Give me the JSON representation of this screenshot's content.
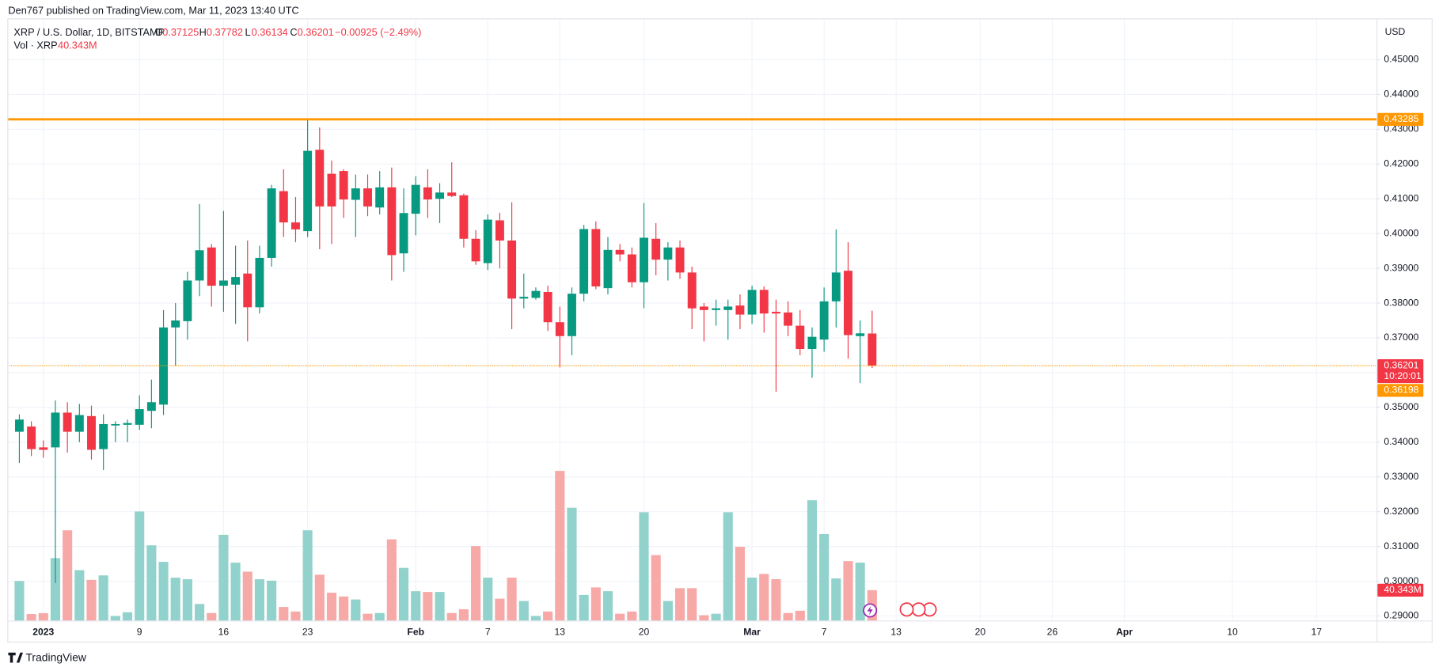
{
  "header": "Den767 published on TradingView.com, Mar 11, 2023 13:40 UTC",
  "brand": "TradingView",
  "chart_data": {
    "type": "candlestick",
    "title": "XRP / U.S. Dollar, 1D, BITSTAMP",
    "ohlc_labels": [
      "O",
      "H",
      "L",
      "C"
    ],
    "change_label": "−0.00925 (−2.49%)",
    "currency": "USD",
    "countdown": "10:20:01",
    "up_color": "#089981",
    "down_color": "#f23645",
    "volume_up_color": "#92d2cc",
    "volume_down_color": "#f7a9a7",
    "grid": true,
    "x": [
      "2022-12-30",
      "2022-12-31",
      "2023-01-01",
      "2023-01-02",
      "2023-01-03",
      "2023-01-04",
      "2023-01-05",
      "2023-01-06",
      "2023-01-07",
      "2023-01-08",
      "2023-01-09",
      "2023-01-10",
      "2023-01-11",
      "2023-01-12",
      "2023-01-13",
      "2023-01-14",
      "2023-01-15",
      "2023-01-16",
      "2023-01-17",
      "2023-01-18",
      "2023-01-19",
      "2023-01-20",
      "2023-01-21",
      "2023-01-22",
      "2023-01-23",
      "2023-01-24",
      "2023-01-25",
      "2023-01-26",
      "2023-01-27",
      "2023-01-28",
      "2023-01-29",
      "2023-01-30",
      "2023-01-31",
      "2023-02-01",
      "2023-02-02",
      "2023-02-03",
      "2023-02-04",
      "2023-02-05",
      "2023-02-06",
      "2023-02-07",
      "2023-02-08",
      "2023-02-09",
      "2023-02-10",
      "2023-02-11",
      "2023-02-12",
      "2023-02-13",
      "2023-02-14",
      "2023-02-15",
      "2023-02-16",
      "2023-02-17",
      "2023-02-18",
      "2023-02-19",
      "2023-02-20",
      "2023-02-21",
      "2023-02-22",
      "2023-02-23",
      "2023-02-24",
      "2023-02-25",
      "2023-02-26",
      "2023-02-27",
      "2023-02-28",
      "2023-03-01",
      "2023-03-02",
      "2023-03-03",
      "2023-03-04",
      "2023-03-05",
      "2023-03-06",
      "2023-03-07",
      "2023-03-08",
      "2023-03-09",
      "2023-03-10",
      "2023-03-11"
    ],
    "open": [
      0.343,
      0.3445,
      0.3385,
      0.3385,
      0.3485,
      0.343,
      0.3475,
      0.338,
      0.3448,
      0.345,
      0.345,
      0.349,
      0.3508,
      0.373,
      0.3748,
      0.3865,
      0.396,
      0.385,
      0.3853,
      0.3885,
      0.3788,
      0.393,
      0.4122,
      0.4032,
      0.4007,
      0.4241,
      0.4172,
      0.418,
      0.4097,
      0.413,
      0.4075,
      0.4133,
      0.3943,
      0.4057,
      0.4133,
      0.41,
      0.4118,
      0.411,
      0.3985,
      0.3915,
      0.4038,
      0.398,
      0.3813,
      0.3815,
      0.3832,
      0.3745,
      0.3705,
      0.3827,
      0.4013,
      0.3843,
      0.3953,
      0.394,
      0.386,
      0.3985,
      0.3925,
      0.396,
      0.3888,
      0.379,
      0.378,
      0.378,
      0.3793,
      0.3767,
      0.3838,
      0.3775,
      0.3773,
      0.3735,
      0.3668,
      0.3695,
      0.3805,
      0.3893,
      0.3705,
      0.37125
    ],
    "high": [
      0.348,
      0.346,
      0.3405,
      0.352,
      0.3515,
      0.351,
      0.3505,
      0.348,
      0.346,
      0.3465,
      0.3535,
      0.358,
      0.378,
      0.38,
      0.389,
      0.4085,
      0.397,
      0.4065,
      0.3965,
      0.398,
      0.3965,
      0.414,
      0.4185,
      0.4105,
      0.433,
      0.4305,
      0.421,
      0.4185,
      0.417,
      0.417,
      0.418,
      0.419,
      0.413,
      0.4165,
      0.4185,
      0.4145,
      0.4205,
      0.4115,
      0.401,
      0.4055,
      0.406,
      0.409,
      0.3885,
      0.3845,
      0.385,
      0.379,
      0.3845,
      0.4025,
      0.4035,
      0.399,
      0.397,
      0.396,
      0.4088,
      0.403,
      0.3975,
      0.398,
      0.3905,
      0.38,
      0.381,
      0.381,
      0.3825,
      0.385,
      0.3848,
      0.381,
      0.3805,
      0.378,
      0.373,
      0.3845,
      0.4012,
      0.3975,
      0.375,
      0.37782
    ],
    "low": [
      0.334,
      0.336,
      0.3355,
      0.2995,
      0.337,
      0.34,
      0.335,
      0.332,
      0.34,
      0.34,
      0.3435,
      0.344,
      0.3478,
      0.362,
      0.3695,
      0.382,
      0.379,
      0.3775,
      0.374,
      0.369,
      0.377,
      0.3905,
      0.399,
      0.3975,
      0.399,
      0.3955,
      0.397,
      0.4045,
      0.399,
      0.405,
      0.4055,
      0.3865,
      0.389,
      0.3995,
      0.4045,
      0.403,
      0.4105,
      0.396,
      0.391,
      0.3895,
      0.39,
      0.3725,
      0.3785,
      0.381,
      0.372,
      0.3615,
      0.365,
      0.3805,
      0.384,
      0.3825,
      0.392,
      0.3845,
      0.3785,
      0.388,
      0.3865,
      0.387,
      0.3725,
      0.369,
      0.3735,
      0.3695,
      0.3725,
      0.374,
      0.3715,
      0.3545,
      0.3705,
      0.365,
      0.3585,
      0.366,
      0.373,
      0.364,
      0.357,
      0.36134
    ],
    "close": [
      0.3465,
      0.338,
      0.3378,
      0.3485,
      0.343,
      0.3478,
      0.3378,
      0.3452,
      0.3452,
      0.3455,
      0.3495,
      0.3515,
      0.373,
      0.375,
      0.3865,
      0.3952,
      0.385,
      0.3865,
      0.3875,
      0.3788,
      0.393,
      0.413,
      0.4032,
      0.4012,
      0.4238,
      0.4078,
      0.4078,
      0.4098,
      0.413,
      0.4078,
      0.4133,
      0.3938,
      0.4059,
      0.414,
      0.4098,
      0.4118,
      0.4108,
      0.3985,
      0.392,
      0.404,
      0.398,
      0.3813,
      0.3818,
      0.3835,
      0.3745,
      0.3705,
      0.3827,
      0.4013,
      0.3848,
      0.3953,
      0.394,
      0.386,
      0.3988,
      0.3925,
      0.396,
      0.3888,
      0.3785,
      0.378,
      0.3785,
      0.379,
      0.3767,
      0.3838,
      0.377,
      0.377,
      0.3735,
      0.3668,
      0.3703,
      0.3805,
      0.3888,
      0.3708,
      0.3713,
      0.36201
    ],
    "volume": {
      "name": "Vol · XRP",
      "value_label": "40.343M",
      "values": [
        52.6,
        8.6,
        9.8,
        83,
        120,
        67,
        54,
        60,
        6,
        11,
        145,
        100,
        78,
        57,
        55,
        22,
        10,
        114,
        77,
        65,
        55,
        53,
        18,
        12,
        120,
        61,
        37,
        32,
        28,
        9,
        10,
        108,
        70,
        39,
        38,
        38,
        10,
        15,
        99,
        57,
        29,
        57,
        26,
        6,
        12,
        199,
        150,
        34,
        44,
        39,
        9,
        12,
        144,
        87,
        26,
        43,
        43,
        7,
        9,
        144,
        98,
        57,
        62,
        55,
        10,
        13,
        160,
        115,
        56,
        79,
        77,
        40.343
      ]
    },
    "hlines": [
      {
        "value": 0.43285,
        "color": "#ff9800",
        "style": "solid"
      },
      {
        "value": 0.36198,
        "color": "#ff9800",
        "style": "dotted"
      }
    ],
    "xlim": [
      "2022-12-29",
      "2023-04-22"
    ],
    "ylim": [
      0.2887,
      0.4619
    ],
    "xticks": [
      {
        "value": "2023-01-01",
        "label": "2023"
      },
      {
        "value": "2023-01-09",
        "label": "9"
      },
      {
        "value": "2023-01-16",
        "label": "16"
      },
      {
        "value": "2023-01-23",
        "label": "23"
      },
      {
        "value": "2023-02-01",
        "label": "Feb"
      },
      {
        "value": "2023-02-07",
        "label": "7"
      },
      {
        "value": "2023-02-13",
        "label": "13"
      },
      {
        "value": "2023-02-20",
        "label": "20"
      },
      {
        "value": "2023-03-01",
        "label": "Mar"
      },
      {
        "value": "2023-03-07",
        "label": "7"
      },
      {
        "value": "2023-03-13",
        "label": "13"
      },
      {
        "value": "2023-03-20",
        "label": "20"
      },
      {
        "value": "2023-03-26",
        "label": "26"
      },
      {
        "value": "2023-04-01",
        "label": "Apr"
      },
      {
        "value": "2023-04-10",
        "label": "10"
      },
      {
        "value": "2023-04-17",
        "label": "17"
      }
    ],
    "yticks": [
      {
        "value": 0.29,
        "label": "0.29000"
      },
      {
        "value": 0.3,
        "label": "0.30000"
      },
      {
        "value": 0.31,
        "label": "0.31000"
      },
      {
        "value": 0.32,
        "label": "0.32000"
      },
      {
        "value": 0.33,
        "label": "0.33000"
      },
      {
        "value": 0.34,
        "label": "0.34000"
      },
      {
        "value": 0.35,
        "label": "0.35000"
      },
      {
        "value": 0.36,
        "label": "0.36000"
      },
      {
        "value": 0.37,
        "label": "0.37000"
      },
      {
        "value": 0.38,
        "label": "0.38000"
      },
      {
        "value": 0.39,
        "label": "0.39000"
      },
      {
        "value": 0.4,
        "label": "0.40000"
      },
      {
        "value": 0.41,
        "label": "0.41000"
      },
      {
        "value": 0.42,
        "label": "0.42000"
      },
      {
        "value": 0.43,
        "label": "0.43000"
      },
      {
        "value": 0.44,
        "label": "0.44000"
      },
      {
        "value": 0.45,
        "label": "0.45000"
      }
    ]
  }
}
